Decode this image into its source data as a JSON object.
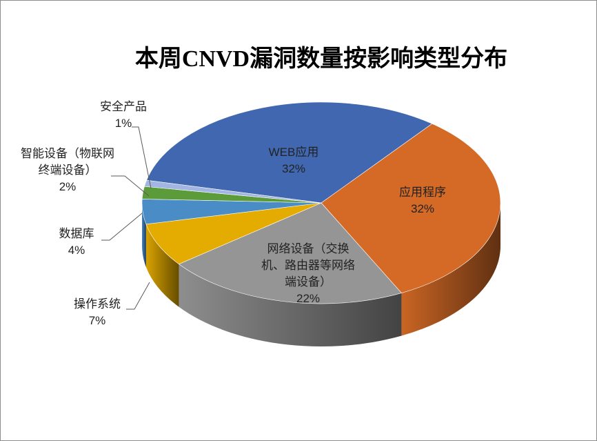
{
  "chart_data": {
    "type": "pie3d",
    "title": "本周CNVD漏洞数量按影响类型分布",
    "categories": [
      "WEB应用",
      "应用程序",
      "网络设备（交换机、路由器等网络端设备）",
      "操作系统",
      "数据库",
      "智能设备（物联网终端设备）",
      "安全产品"
    ],
    "values": [
      32,
      32,
      22,
      7,
      4,
      2,
      1
    ],
    "value_labels": [
      "32%",
      "32%",
      "22%",
      "7%",
      "4%",
      "2%",
      "1%"
    ],
    "colors": [
      "#4067b0",
      "#d46a26",
      "#959595",
      "#e4ab00",
      "#4a8cc6",
      "#5c9b3a",
      "#a3b5e2"
    ]
  }
}
